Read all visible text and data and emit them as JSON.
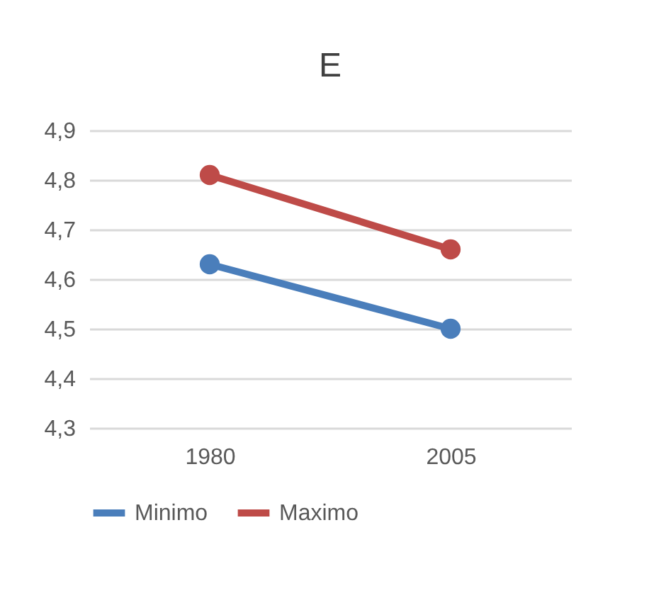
{
  "chart_data": {
    "type": "line",
    "title": "E",
    "categories": [
      "1980",
      "2005"
    ],
    "series": [
      {
        "name": "Minimo",
        "color": "#4a7ebb",
        "values": [
          4.63,
          4.5
        ]
      },
      {
        "name": "Maximo",
        "color": "#be4b48",
        "values": [
          4.81,
          4.66
        ]
      }
    ],
    "ylim": [
      4.3,
      4.9
    ],
    "yticks": [
      {
        "value": 4.3,
        "label": "4,3"
      },
      {
        "value": 4.4,
        "label": "4,4"
      },
      {
        "value": 4.5,
        "label": "4,5"
      },
      {
        "value": 4.6,
        "label": "4,6"
      },
      {
        "value": 4.7,
        "label": "4,7"
      },
      {
        "value": 4.8,
        "label": "4,8"
      },
      {
        "value": 4.9,
        "label": "4,9"
      }
    ],
    "grid": "y",
    "legend": "bottom",
    "marker": "circle",
    "line_style": "solid"
  }
}
